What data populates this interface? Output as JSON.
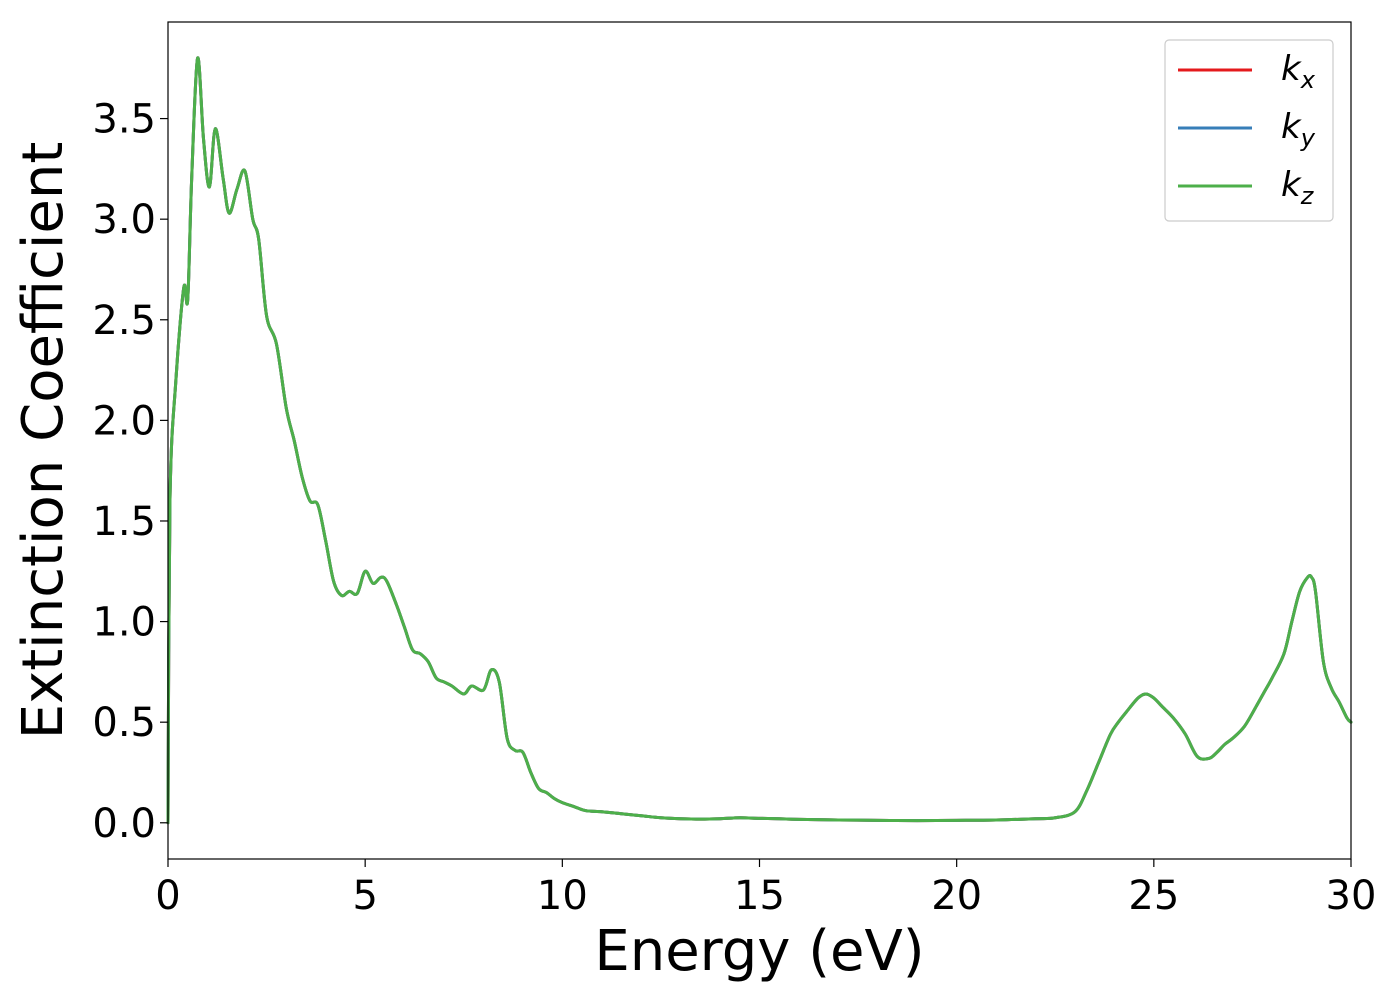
{
  "chart_data": {
    "type": "line",
    "xlabel": "Energy (eV)",
    "ylabel": "Extinction Coefficient",
    "xlim": [
      0,
      30
    ],
    "ylim": [
      -0.18,
      3.98
    ],
    "xticks": [
      0,
      5,
      10,
      15,
      20,
      25,
      30
    ],
    "xtick_labels": [
      "0",
      "5",
      "10",
      "15",
      "20",
      "25",
      "30"
    ],
    "yticks": [
      0.0,
      0.5,
      1.0,
      1.5,
      2.0,
      2.5,
      3.0,
      3.5
    ],
    "ytick_labels": [
      "0.0",
      "0.5",
      "1.0",
      "1.5",
      "2.0",
      "2.5",
      "3.0",
      "3.5"
    ],
    "grid": false,
    "legend_position": "top-right",
    "series": [
      {
        "name": "k",
        "subscript": "x",
        "color": "#e41a1c",
        "x": [
          0,
          0.05,
          0.2,
          0.4,
          0.5,
          0.6,
          0.75,
          0.9,
          1.05,
          1.2,
          1.4,
          1.55,
          1.75,
          1.95,
          2.15,
          2.3,
          2.5,
          2.75,
          3.0,
          3.2,
          3.4,
          3.6,
          3.8,
          4.0,
          4.2,
          4.4,
          4.6,
          4.8,
          5.0,
          5.2,
          5.4,
          5.55,
          5.8,
          6.0,
          6.2,
          6.4,
          6.6,
          6.8,
          7.0,
          7.2,
          7.5,
          7.7,
          8.0,
          8.2,
          8.4,
          8.6,
          8.8,
          9.0,
          9.2,
          9.4,
          9.6,
          9.8,
          10.0,
          10.3,
          10.6,
          11.0,
          11.5,
          12.0,
          12.5,
          13.0,
          13.5,
          14.0,
          14.5,
          15.0,
          15.5,
          16.0,
          17.0,
          18.0,
          19.0,
          20.0,
          21.0,
          22.0,
          22.5,
          23.0,
          23.3,
          23.6,
          23.9,
          24.1,
          24.3,
          24.6,
          24.8,
          25.0,
          25.2,
          25.5,
          25.8,
          26.1,
          26.4,
          26.6,
          26.8,
          27.0,
          27.3,
          27.6,
          27.8,
          28.0,
          28.3,
          28.5,
          28.7,
          28.9,
          29.0,
          29.1,
          29.3,
          29.5,
          29.7,
          29.9,
          30.0
        ],
        "y": [
          0,
          1.6,
          2.2,
          2.66,
          2.6,
          3.2,
          3.8,
          3.4,
          3.16,
          3.45,
          3.2,
          3.03,
          3.15,
          3.24,
          3.0,
          2.9,
          2.52,
          2.38,
          2.06,
          1.9,
          1.72,
          1.6,
          1.58,
          1.4,
          1.2,
          1.13,
          1.15,
          1.14,
          1.25,
          1.19,
          1.22,
          1.2,
          1.08,
          0.97,
          0.86,
          0.84,
          0.8,
          0.72,
          0.7,
          0.68,
          0.64,
          0.68,
          0.66,
          0.76,
          0.7,
          0.42,
          0.36,
          0.35,
          0.25,
          0.17,
          0.15,
          0.12,
          0.1,
          0.08,
          0.06,
          0.055,
          0.045,
          0.035,
          0.025,
          0.02,
          0.018,
          0.02,
          0.025,
          0.022,
          0.02,
          0.017,
          0.014,
          0.012,
          0.011,
          0.012,
          0.014,
          0.02,
          0.025,
          0.055,
          0.16,
          0.3,
          0.44,
          0.5,
          0.55,
          0.62,
          0.64,
          0.62,
          0.58,
          0.52,
          0.44,
          0.33,
          0.32,
          0.35,
          0.39,
          0.42,
          0.48,
          0.58,
          0.65,
          0.72,
          0.84,
          1.0,
          1.15,
          1.22,
          1.22,
          1.15,
          0.8,
          0.67,
          0.6,
          0.52,
          0.5
        ]
      },
      {
        "name": "k",
        "subscript": "y",
        "color": "#377eb8",
        "x": [
          0,
          0.05,
          0.2,
          0.4,
          0.5,
          0.6,
          0.75,
          0.9,
          1.05,
          1.2,
          1.4,
          1.55,
          1.75,
          1.95,
          2.15,
          2.3,
          2.5,
          2.75,
          3.0,
          3.2,
          3.4,
          3.6,
          3.8,
          4.0,
          4.2,
          4.4,
          4.6,
          4.8,
          5.0,
          5.2,
          5.4,
          5.55,
          5.8,
          6.0,
          6.2,
          6.4,
          6.6,
          6.8,
          7.0,
          7.2,
          7.5,
          7.7,
          8.0,
          8.2,
          8.4,
          8.6,
          8.8,
          9.0,
          9.2,
          9.4,
          9.6,
          9.8,
          10.0,
          10.3,
          10.6,
          11.0,
          11.5,
          12.0,
          12.5,
          13.0,
          13.5,
          14.0,
          14.5,
          15.0,
          15.5,
          16.0,
          17.0,
          18.0,
          19.0,
          20.0,
          21.0,
          22.0,
          22.5,
          23.0,
          23.3,
          23.6,
          23.9,
          24.1,
          24.3,
          24.6,
          24.8,
          25.0,
          25.2,
          25.5,
          25.8,
          26.1,
          26.4,
          26.6,
          26.8,
          27.0,
          27.3,
          27.6,
          27.8,
          28.0,
          28.3,
          28.5,
          28.7,
          28.9,
          29.0,
          29.1,
          29.3,
          29.5,
          29.7,
          29.9,
          30.0
        ],
        "y": [
          0,
          1.6,
          2.2,
          2.66,
          2.6,
          3.2,
          3.8,
          3.4,
          3.16,
          3.45,
          3.2,
          3.03,
          3.15,
          3.24,
          3.0,
          2.9,
          2.52,
          2.38,
          2.06,
          1.9,
          1.72,
          1.6,
          1.58,
          1.4,
          1.2,
          1.13,
          1.15,
          1.14,
          1.25,
          1.19,
          1.22,
          1.2,
          1.08,
          0.97,
          0.86,
          0.84,
          0.8,
          0.72,
          0.7,
          0.68,
          0.64,
          0.68,
          0.66,
          0.76,
          0.7,
          0.42,
          0.36,
          0.35,
          0.25,
          0.17,
          0.15,
          0.12,
          0.1,
          0.08,
          0.06,
          0.055,
          0.045,
          0.035,
          0.025,
          0.02,
          0.018,
          0.02,
          0.025,
          0.022,
          0.02,
          0.017,
          0.014,
          0.012,
          0.011,
          0.012,
          0.014,
          0.02,
          0.025,
          0.055,
          0.16,
          0.3,
          0.44,
          0.5,
          0.55,
          0.62,
          0.64,
          0.62,
          0.58,
          0.52,
          0.44,
          0.33,
          0.32,
          0.35,
          0.39,
          0.42,
          0.48,
          0.58,
          0.65,
          0.72,
          0.84,
          1.0,
          1.15,
          1.22,
          1.22,
          1.15,
          0.8,
          0.67,
          0.6,
          0.52,
          0.5
        ]
      },
      {
        "name": "k",
        "subscript": "z",
        "color": "#4daf4a",
        "x": [
          0,
          0.05,
          0.2,
          0.4,
          0.5,
          0.6,
          0.75,
          0.9,
          1.05,
          1.2,
          1.4,
          1.55,
          1.75,
          1.95,
          2.15,
          2.3,
          2.5,
          2.75,
          3.0,
          3.2,
          3.4,
          3.6,
          3.8,
          4.0,
          4.2,
          4.4,
          4.6,
          4.8,
          5.0,
          5.2,
          5.4,
          5.55,
          5.8,
          6.0,
          6.2,
          6.4,
          6.6,
          6.8,
          7.0,
          7.2,
          7.5,
          7.7,
          8.0,
          8.2,
          8.4,
          8.6,
          8.8,
          9.0,
          9.2,
          9.4,
          9.6,
          9.8,
          10.0,
          10.3,
          10.6,
          11.0,
          11.5,
          12.0,
          12.5,
          13.0,
          13.5,
          14.0,
          14.5,
          15.0,
          15.5,
          16.0,
          17.0,
          18.0,
          19.0,
          20.0,
          21.0,
          22.0,
          22.5,
          23.0,
          23.3,
          23.6,
          23.9,
          24.1,
          24.3,
          24.6,
          24.8,
          25.0,
          25.2,
          25.5,
          25.8,
          26.1,
          26.4,
          26.6,
          26.8,
          27.0,
          27.3,
          27.6,
          27.8,
          28.0,
          28.3,
          28.5,
          28.7,
          28.9,
          29.0,
          29.1,
          29.3,
          29.5,
          29.7,
          29.9,
          30.0
        ],
        "y": [
          0,
          1.6,
          2.2,
          2.66,
          2.6,
          3.2,
          3.8,
          3.4,
          3.16,
          3.45,
          3.2,
          3.03,
          3.15,
          3.24,
          3.0,
          2.9,
          2.52,
          2.38,
          2.06,
          1.9,
          1.72,
          1.6,
          1.58,
          1.4,
          1.2,
          1.13,
          1.15,
          1.14,
          1.25,
          1.19,
          1.22,
          1.2,
          1.08,
          0.97,
          0.86,
          0.84,
          0.8,
          0.72,
          0.7,
          0.68,
          0.64,
          0.68,
          0.66,
          0.76,
          0.7,
          0.42,
          0.36,
          0.35,
          0.25,
          0.17,
          0.15,
          0.12,
          0.1,
          0.08,
          0.06,
          0.055,
          0.045,
          0.035,
          0.025,
          0.02,
          0.018,
          0.02,
          0.025,
          0.022,
          0.02,
          0.017,
          0.014,
          0.012,
          0.011,
          0.012,
          0.014,
          0.02,
          0.025,
          0.055,
          0.16,
          0.3,
          0.44,
          0.5,
          0.55,
          0.62,
          0.64,
          0.62,
          0.58,
          0.52,
          0.44,
          0.33,
          0.32,
          0.35,
          0.39,
          0.42,
          0.48,
          0.58,
          0.65,
          0.72,
          0.84,
          1.0,
          1.15,
          1.22,
          1.22,
          1.15,
          0.8,
          0.67,
          0.6,
          0.52,
          0.5
        ]
      }
    ]
  }
}
